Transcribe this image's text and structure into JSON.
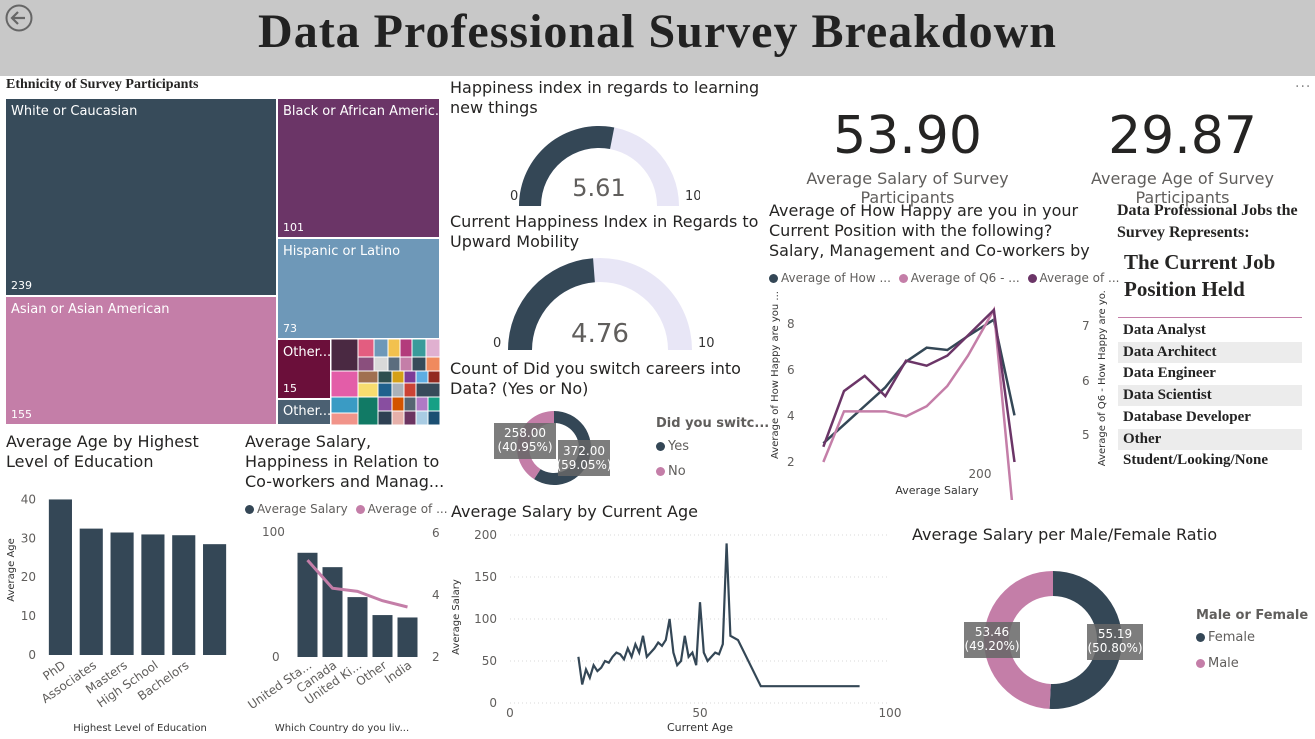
{
  "header": {
    "title": "Data Professional Survey Breakdown"
  },
  "treemap": {
    "title": "Ethnicity of Survey Participants",
    "items": [
      {
        "label": "White or Caucasian",
        "value": "239",
        "color": "#374b5a"
      },
      {
        "label": "Black or African Americ...",
        "value": "101",
        "color": "#6b3567"
      },
      {
        "label": "Hispanic or Latino",
        "value": "73",
        "color": "#6e98b8"
      },
      {
        "label": "Asian or Asian American",
        "value": "155",
        "color": "#c47ea8"
      },
      {
        "label": "Other...",
        "value": "15",
        "color": "#6b0f3a"
      },
      {
        "label": "Other...",
        "value": "",
        "color": "#4b6072"
      }
    ]
  },
  "gauge1": {
    "title": "Happiness index in regards to learning new things",
    "value": 5.61,
    "value_label": "5.61",
    "min": "0",
    "max": "10"
  },
  "gauge2": {
    "title": "Current Happiness Index in Regards to Upward Mobility",
    "value": 4.76,
    "value_label": "4.76",
    "min": "0",
    "max": "10"
  },
  "careers": {
    "title": "Count of Did you switch careers into Data? (Yes or No)",
    "legend_title": "Did you switc...",
    "slices": [
      {
        "name": "Yes",
        "value": 372.0,
        "label": "372.00",
        "pct": "(59.05%)",
        "color": "#344756"
      },
      {
        "name": "No",
        "value": 258.0,
        "label": "258.00",
        "pct": "(40.95%)",
        "color": "#c47ea8"
      }
    ]
  },
  "kpis": [
    {
      "value": "53.90",
      "label": "Average Salary of Survey  Participants"
    },
    {
      "value": "29.87",
      "label": "Average Age of Survey Participants"
    }
  ],
  "happy_chart": {
    "title": "Average of How Happy are you in your Current Position with the following? Salary, Management and Co-workers by Average ...",
    "legend": [
      "Average of How ...",
      "Average of Q6 - ...",
      "Average of ..."
    ],
    "ylabel_left": "Average of How Happy are you ...",
    "ylabel_right": "Average of Q6 - How Happy are yo...",
    "xlabel": "Average Salary",
    "yticks_left": [
      "2",
      "4",
      "6",
      "8"
    ],
    "yticks_right": [
      "5",
      "6",
      "7"
    ],
    "xticks": [
      "200"
    ]
  },
  "jobs": {
    "heading": "Data Professional Jobs the Survey Represents:",
    "subheading": "The Current Job Position Held",
    "items": [
      "Data Analyst",
      "Data Architect",
      "Data Engineer",
      "Data Scientist",
      "Database Developer",
      "Other",
      "Student/Looking/None"
    ]
  },
  "edu_chart": {
    "title": "Average Age by Highest Level of Education",
    "xlabel": "Highest Level of Education",
    "ylabel": "Average Age",
    "yticks": [
      "0",
      "10",
      "20",
      "30",
      "40"
    ]
  },
  "country_chart": {
    "title": "Average Salary, Happiness in Relation to Co-workers and Manag...",
    "legend": [
      "Average Salary",
      "Average of ..."
    ],
    "xlabel": "Which Country do you liv...",
    "yticks_left": [
      "0",
      "100"
    ],
    "yticks_right": [
      "2",
      "4",
      "6"
    ]
  },
  "age_chart": {
    "title": "Average Salary by Current Age",
    "xlabel": "Current Age",
    "ylabel": "Average Salary",
    "yticks": [
      "0",
      "50",
      "100",
      "150",
      "200"
    ],
    "xticks": [
      "0",
      "50",
      "100"
    ]
  },
  "gender": {
    "title": "Average Salary per Male/Female Ratio",
    "legend_title": "Male or Female",
    "slices": [
      {
        "name": "Female",
        "value": 55.19,
        "label": "55.19",
        "pct": "(50.80%)",
        "color": "#344756"
      },
      {
        "name": "Male",
        "value": 53.46,
        "label": "53.46",
        "pct": "(49.20%)",
        "color": "#c47ea8"
      }
    ]
  },
  "chart_data": [
    {
      "type": "bar",
      "title": "Average Age by Highest Level of Education",
      "categories": [
        "PhD",
        "Associates",
        "Masters",
        "High School",
        "Bachelors",
        ""
      ],
      "values": [
        40,
        32.5,
        31.5,
        31,
        30.8,
        28.5
      ],
      "xlabel": "Highest Level of Education",
      "ylabel": "Average Age",
      "ylim": [
        0,
        45
      ]
    },
    {
      "type": "bar",
      "title": "Average Salary, Happiness in Relation to Co-workers and Manag...",
      "categories": [
        "United Sta...",
        "Canada",
        "United Ki...",
        "Other",
        "India"
      ],
      "series": [
        {
          "name": "Average Salary",
          "values": [
            87,
            75,
            50,
            35,
            33
          ]
        },
        {
          "name": "Average of ...",
          "values": [
            5.1,
            4.2,
            4.1,
            3.8,
            3.6
          ]
        }
      ],
      "xlabel": "Which Country do you liv...",
      "ylim": [
        0,
        120
      ],
      "y2lim": [
        2,
        6
      ]
    },
    {
      "type": "line",
      "title": "Average of How Happy are you in your Current Position with the following? Salary, Management and Co-workers by Average ...",
      "x": [
        20,
        40,
        60,
        80,
        100,
        120,
        140,
        160,
        185,
        205
      ],
      "series": [
        {
          "name": "Average of How ...",
          "values": [
            2.8,
            3.6,
            4.4,
            5.2,
            6.3,
            6.9,
            6.8,
            7.4,
            8.1,
            4.0
          ]
        },
        {
          "name": "Average of Q6 - ...",
          "values": [
            4.5,
            5.5,
            5.5,
            5.5,
            5.4,
            5.6,
            6.0,
            6.6,
            7.5,
            3.2
          ]
        },
        {
          "name": "Average of ...",
          "values": [
            4.8,
            5.9,
            6.2,
            5.8,
            6.5,
            6.4,
            6.6,
            7.0,
            7.5,
            4.5
          ]
        }
      ],
      "xlabel": "Average Salary",
      "ylim": [
        2,
        9
      ]
    },
    {
      "type": "line",
      "title": "Average Salary by Current Age",
      "x": [
        18,
        19,
        20,
        21,
        22,
        23,
        24,
        25,
        26,
        27,
        28,
        29,
        30,
        31,
        32,
        33,
        34,
        35,
        36,
        37,
        38,
        39,
        40,
        41,
        42,
        43,
        44,
        45,
        46,
        47,
        48,
        49,
        50,
        51,
        52,
        53,
        54,
        55,
        56,
        57,
        58,
        60,
        66,
        92
      ],
      "series": [
        {
          "name": "Average Salary",
          "values": [
            55,
            22,
            40,
            30,
            45,
            38,
            42,
            50,
            48,
            55,
            60,
            58,
            52,
            65,
            55,
            70,
            60,
            80,
            55,
            60,
            65,
            72,
            68,
            75,
            100,
            60,
            45,
            50,
            80,
            55,
            60,
            45,
            120,
            60,
            50,
            55,
            60,
            58,
            70,
            190,
            80,
            75,
            20,
            20
          ]
        }
      ],
      "xlabel": "Current Age",
      "ylabel": "Average Salary",
      "xlim": [
        0,
        100
      ],
      "ylim": [
        0,
        200
      ]
    }
  ]
}
